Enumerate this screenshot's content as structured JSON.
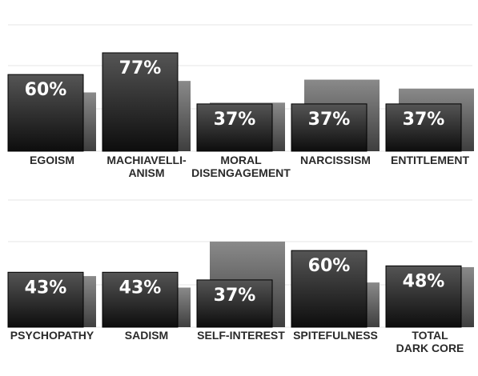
{
  "chart_data": {
    "type": "bar",
    "series_names": [
      "",
      ""
    ],
    "panels": [
      {
        "categories": [
          "EGOISM",
          "MACHIAVELLI-\nANISM",
          "MORAL\nDISENGAGEMENT",
          "NARCISSISM",
          "ENTITLEMENT"
        ],
        "values": [
          60,
          77,
          37,
          37,
          37
        ],
        "comparison_values": [
          46,
          55,
          38,
          56,
          49
        ],
        "value_labels": [
          "60%",
          "77%",
          "37%",
          "37%",
          "37%"
        ]
      },
      {
        "categories": [
          "PSYCHOPATHY",
          "SADISM",
          "SELF-INTEREST",
          "SPITEFULNESS",
          "TOTAL\nDARK CORE"
        ],
        "values": [
          43,
          43,
          37,
          60,
          48
        ],
        "comparison_values": [
          40,
          31,
          67,
          35,
          47
        ],
        "value_labels": [
          "43%",
          "43%",
          "37%",
          "60%",
          "48%"
        ]
      }
    ],
    "ylim": [
      0,
      77
    ],
    "grid": true
  },
  "colors": {
    "primary_top": "#555555",
    "primary_bottom": "#0d0d0d",
    "comparison_top": "#8a8a8a",
    "comparison_bottom": "#3e3e3e",
    "gridline": "#e4e4e4",
    "label": "#2a2a2a"
  }
}
